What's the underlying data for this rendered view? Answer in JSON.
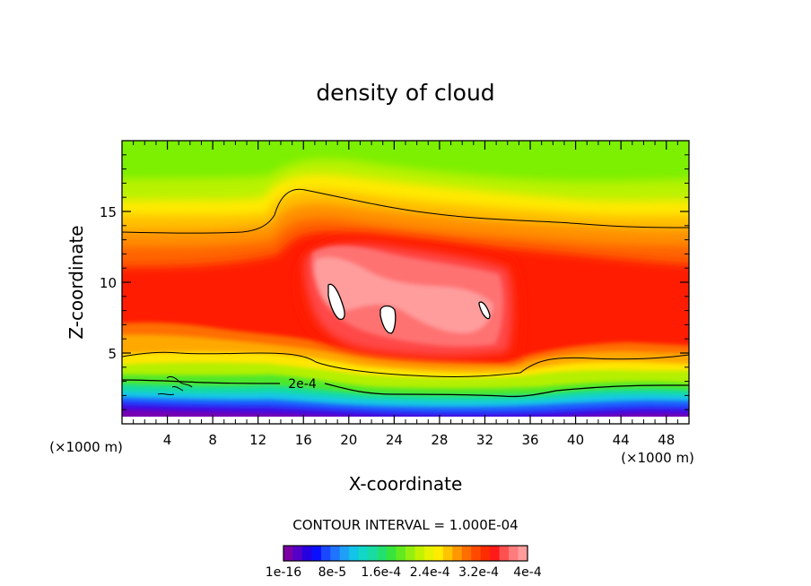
{
  "chart_data": {
    "type": "contour",
    "title": "density of cloud",
    "xlabel": "X-coordinate",
    "ylabel": "Z-coordinate",
    "x_units_left": "(×1000 m)",
    "x_units_right": "(×1000 m)",
    "xlim": [
      0,
      50
    ],
    "ylim": [
      0,
      20
    ],
    "x_ticks": [
      4,
      8,
      12,
      16,
      20,
      24,
      28,
      32,
      36,
      40,
      44,
      48
    ],
    "x_tick_labels": [
      "4",
      "8",
      "12",
      "16",
      "20",
      "24",
      "28",
      "32",
      "36",
      "40",
      "44",
      "48"
    ],
    "y_ticks": [
      5,
      10,
      15
    ],
    "y_tick_labels": [
      "5",
      "10",
      "15"
    ],
    "contour_label": "2e-4",
    "contour_interval_text": "CONTOUR INTERVAL = 1.000E-04",
    "colorbar": {
      "colors": [
        "#7b00a6",
        "#5400c8",
        "#2600e0",
        "#0a10ff",
        "#1a48ff",
        "#1f74ff",
        "#1ea0f6",
        "#12c4e8",
        "#10d8c4",
        "#18dca4",
        "#22e070",
        "#38e43c",
        "#62ea20",
        "#94ef10",
        "#c3f200",
        "#e6f200",
        "#ffec00",
        "#ffc400",
        "#ff9800",
        "#ff6e00",
        "#ff4a00",
        "#ff2c00",
        "#ff1a1a",
        "#ff5050",
        "#ff7c7c",
        "#ff9c9c"
      ],
      "labels": [
        "1e-16",
        "8e-5",
        "1.6e-4",
        "2.4e-4",
        "3.2e-4",
        "4e-4"
      ]
    }
  }
}
